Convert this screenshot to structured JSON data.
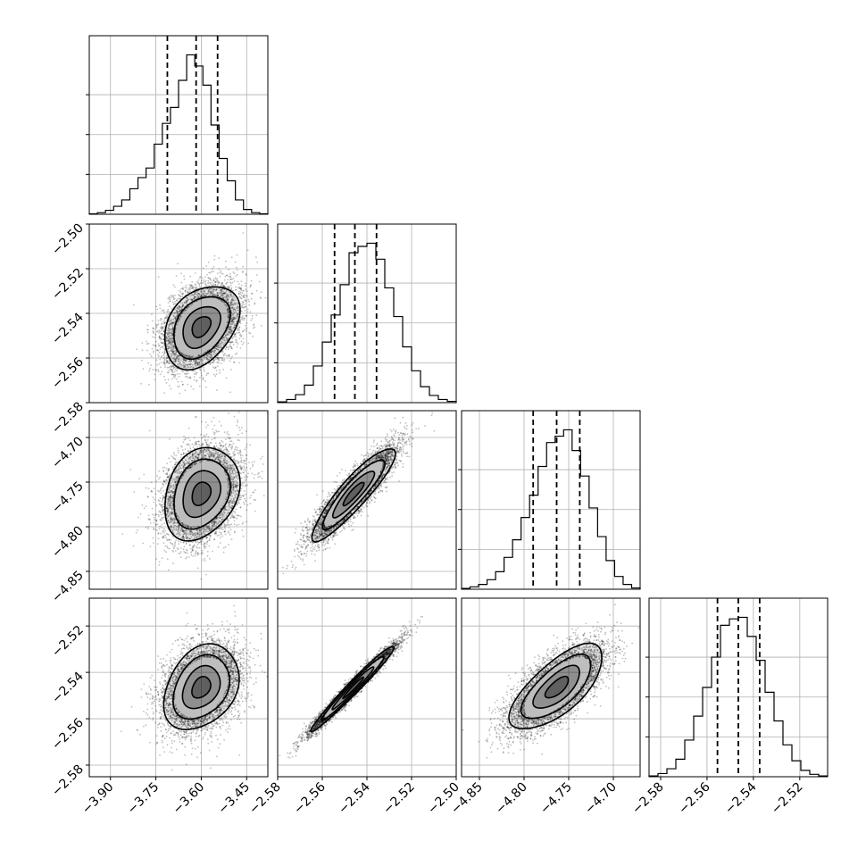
{
  "chart_data": {
    "type": "corner",
    "n_params": 4,
    "grid": true,
    "params": [
      {
        "index": 0,
        "range": [
          -3.97,
          -3.38
        ],
        "ticks": [
          -3.9,
          -3.75,
          -3.6,
          -3.45
        ],
        "tick_labels": [
          "−3.90",
          "−3.75",
          "−3.60",
          "−3.45"
        ],
        "quantiles": [
          -3.712,
          -3.617,
          -3.546
        ],
        "peak": -3.6,
        "sd": 0.062,
        "hist_counts": [
          0.3,
          1.0,
          2.5,
          5.0,
          9.0,
          16.0,
          23.0,
          29.0,
          44.0,
          57.0,
          67.0,
          84.0,
          100.0,
          93.0,
          81.0,
          56.0,
          35.0,
          21.0,
          9.0,
          3.0,
          1.0,
          0.3
        ]
      },
      {
        "index": 1,
        "range": [
          -2.58,
          -2.5
        ],
        "ticks": [
          -2.58,
          -2.56,
          -2.54,
          -2.52,
          -2.5
        ],
        "tick_labels": [
          "−2.58",
          "−2.56",
          "−2.54",
          "−2.52",
          "−2.50"
        ],
        "quantiles": [
          -2.5545,
          -2.5454,
          -2.5357
        ],
        "peak": -2.546,
        "sd": 0.0093,
        "hist_counts": [
          0.5,
          2.0,
          5.0,
          11.0,
          23.0,
          38.0,
          55.0,
          74.0,
          94.0,
          98.0,
          100.0,
          90.0,
          72.0,
          54.0,
          35.0,
          20.0,
          10.0,
          4.5,
          2.0,
          0.8
        ]
      },
      {
        "index": 2,
        "range": [
          -4.87,
          -4.67
        ],
        "ticks": [
          -4.85,
          -4.8,
          -4.75,
          -4.7
        ],
        "tick_labels": [
          "−4.85",
          "−4.80",
          "−4.75",
          "−4.70"
        ],
        "quantiles": [
          -4.7898,
          -4.7635,
          -4.7376
        ],
        "peak": -4.763,
        "sd": 0.026,
        "hist_counts": [
          0.5,
          1.5,
          3.0,
          6.0,
          11.0,
          20.0,
          31.0,
          45.0,
          59.0,
          77.0,
          92.0,
          96.0,
          100.0,
          87.0,
          71.0,
          51.0,
          33.0,
          18.0,
          8.0,
          3.0,
          0.8
        ]
      },
      {
        "index": 3,
        "range": [
          -2.585,
          -2.508
        ],
        "ticks": [
          -2.58,
          -2.56,
          -2.54,
          -2.52
        ],
        "tick_labels": [
          "−2.58",
          "−2.56",
          "−2.54",
          "−2.52"
        ],
        "quantiles": [
          -2.5555,
          -2.5465,
          -2.5373
        ],
        "peak": -2.5465,
        "sd": 0.0092,
        "hist_counts": [
          0.5,
          2.0,
          5.0,
          11.0,
          23.0,
          38.0,
          56.0,
          75.0,
          95.0,
          99.0,
          100.0,
          88.0,
          73.0,
          53.0,
          35.0,
          20.0,
          10.0,
          4.0,
          1.5,
          0.5
        ]
      }
    ],
    "correlations": [
      [
        1.0,
        0.35,
        0.25,
        0.3
      ],
      [
        0.35,
        1.0,
        0.9,
        0.98
      ],
      [
        0.25,
        0.9,
        1.0,
        0.7
      ],
      [
        0.3,
        0.98,
        0.7,
        1.0
      ]
    ],
    "contour_levels_sigma": [
      0.5,
      1.0,
      1.5,
      2.0
    ]
  }
}
